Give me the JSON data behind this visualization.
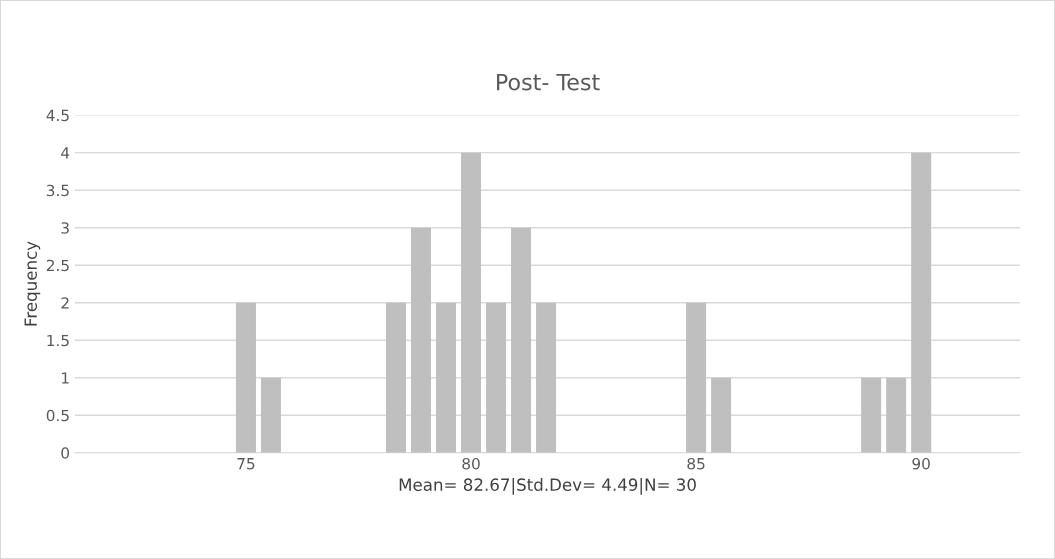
{
  "chart_data": {
    "type": "histogram",
    "title": "Post- Test",
    "xlabel": "Mean= 82.67|Std.Dev= 4.49|N= 30",
    "ylabel": "Frequency",
    "bins": [
      74.722,
      75.278,
      75.833,
      76.389,
      76.944,
      77.5,
      78.056,
      78.611,
      79.167,
      79.722,
      80.278,
      80.833,
      81.389,
      81.944,
      82.5,
      83.056,
      83.611,
      84.167,
      84.722,
      85.278,
      85.833,
      86.389,
      86.944,
      87.5,
      88.056,
      88.611,
      89.167,
      89.722,
      90.278
    ],
    "values": [
      2,
      1,
      0,
      0,
      0,
      0,
      2,
      3,
      2,
      4,
      2,
      3,
      2,
      0,
      0,
      0,
      0,
      0,
      2,
      1,
      0,
      0,
      0,
      0,
      0,
      1,
      1,
      4
    ],
    "color": "#bfbfbf",
    "xlim": [
      71.2,
      92.2
    ],
    "xticks": [
      75,
      80,
      85,
      90
    ],
    "ylim": [
      0,
      4.5
    ],
    "yticks": [
      0,
      0.5,
      1,
      1.5,
      2,
      2.5,
      3,
      3.5,
      4,
      4.5
    ],
    "grid": "y"
  }
}
